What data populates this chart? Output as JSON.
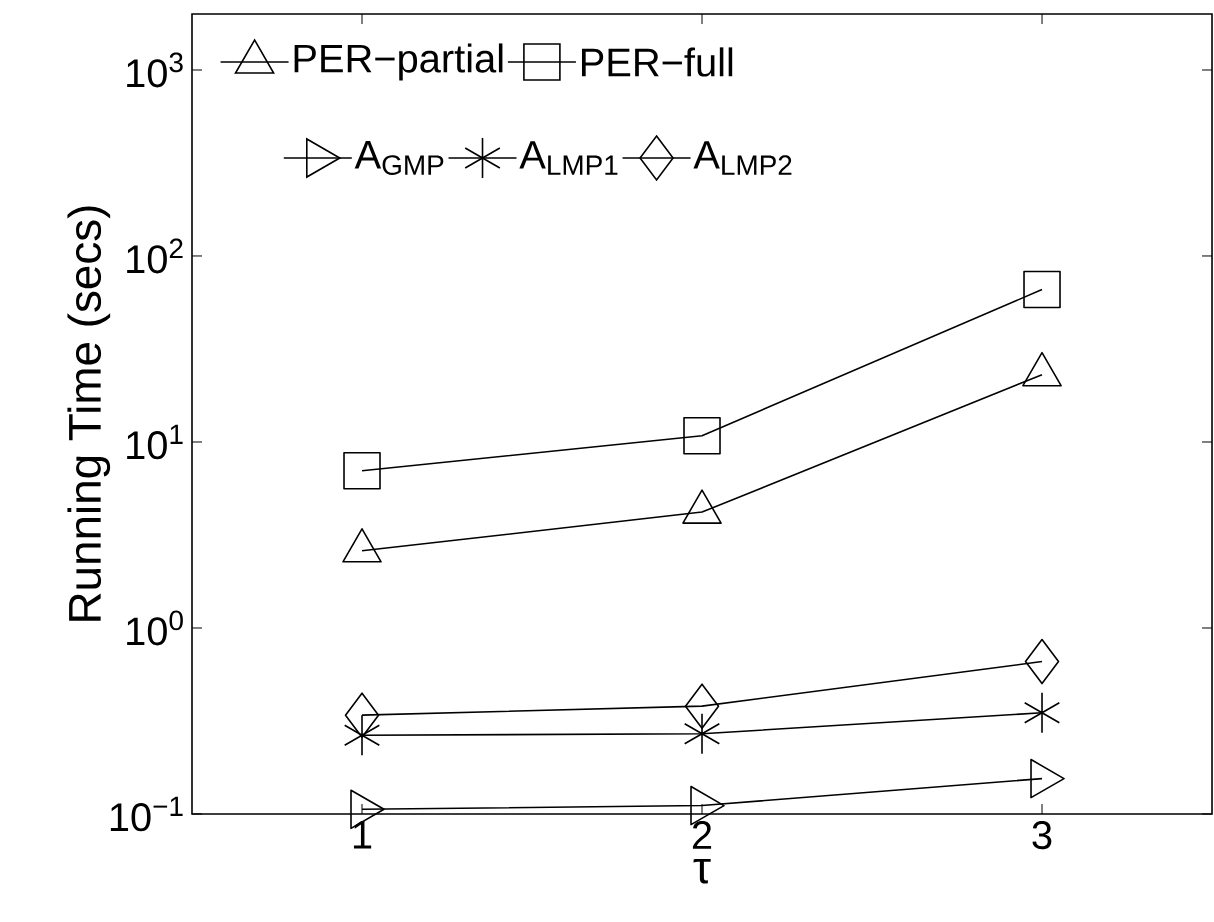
{
  "chart_data": {
    "type": "line",
    "xlabel": "τ",
    "ylabel": "Running Time (secs)",
    "log": "y",
    "x": [
      1,
      2,
      3
    ],
    "xlim": [
      0.5,
      3.5
    ],
    "xticks": [
      1,
      2,
      3
    ],
    "ylim": [
      0.1,
      2000
    ],
    "yticks": [
      {
        "value": 0.1,
        "label": "10$^{−1}$"
      },
      {
        "value": 1,
        "label": "10$^{0}$"
      },
      {
        "value": 10,
        "label": "10$^{1}$"
      },
      {
        "value": 100,
        "label": "10$^{2}$"
      },
      {
        "value": 1000,
        "label": "10$^{3}$"
      }
    ],
    "grid": false,
    "legend": "top",
    "series": [
      {
        "name": "PER−partial",
        "color": "#000000",
        "marker": "triangle",
        "values": [
          2.6,
          4.2,
          23
        ]
      },
      {
        "name": "PER−full",
        "color": "#000000",
        "marker": "square",
        "values": [
          7.0,
          10.8,
          66
        ]
      },
      {
        "name": "A$_{GMP}$",
        "color": "#000000",
        "marker": "triangle-right",
        "values": [
          0.106,
          0.111,
          0.155
        ]
      },
      {
        "name": "A$_{LMP1}$",
        "color": "#000000",
        "marker": "cross",
        "values": [
          0.265,
          0.27,
          0.35
        ]
      },
      {
        "name": "A$_{LMP2}$",
        "color": "#000000",
        "marker": "diamond",
        "values": [
          0.34,
          0.38,
          0.66
        ]
      }
    ]
  }
}
